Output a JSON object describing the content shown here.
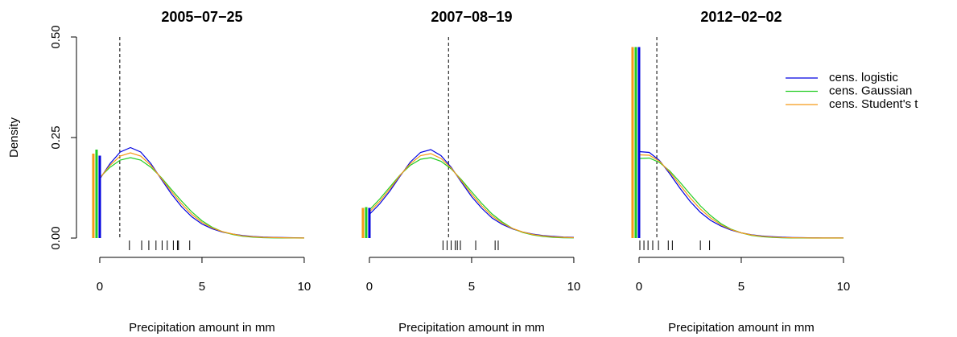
{
  "chart_data": [
    {
      "type": "line",
      "title": "2005−07−25",
      "xlabel": "Precipitation amount in mm",
      "ylabel": "Density",
      "x": [
        0,
        0.5,
        1,
        1.5,
        2,
        2.5,
        3,
        3.5,
        4,
        4.5,
        5,
        5.5,
        6,
        6.5,
        7,
        7.5,
        8,
        8.5,
        9,
        9.5,
        10
      ],
      "series": [
        {
          "color": "#0000e0",
          "mass": 0.205,
          "values": [
            0.147,
            0.185,
            0.214,
            0.225,
            0.214,
            0.185,
            0.147,
            0.11,
            0.078,
            0.053,
            0.035,
            0.023,
            0.015,
            0.01,
            0.0065,
            0.004,
            0.0026,
            0.0017,
            0.0011,
            0.0007,
            0.0005
          ]
        },
        {
          "color": "#22cc22",
          "mass": 0.22,
          "values": [
            0.151,
            0.176,
            0.194,
            0.2,
            0.194,
            0.176,
            0.151,
            0.121,
            0.092,
            0.065,
            0.043,
            0.027,
            0.016,
            0.009,
            0.0045,
            0.0022,
            0.001,
            0.0004,
            0.0002,
            0.0001,
            0
          ]
        },
        {
          "color": "#f59a17",
          "mass": 0.21,
          "values": [
            0.149,
            0.181,
            0.204,
            0.212,
            0.204,
            0.181,
            0.149,
            0.116,
            0.085,
            0.059,
            0.039,
            0.025,
            0.016,
            0.01,
            0.0055,
            0.0031,
            0.0018,
            0.0011,
            0.0007,
            0.0004,
            0.0003
          ]
        }
      ],
      "observation": 0.98,
      "members": [
        1.45,
        2.05,
        2.4,
        2.75,
        3.05,
        3.3,
        3.6,
        3.8,
        3.85,
        4.4
      ],
      "xlim": [
        -0.4,
        10.4
      ],
      "ylim": [
        0,
        0.5
      ],
      "xticks": [
        0,
        5,
        10
      ],
      "yticks": [
        {
          "value": 0,
          "label": "0.00"
        },
        {
          "value": 0.25,
          "label": "0.25"
        },
        {
          "value": 0.5,
          "label": "0.50"
        }
      ]
    },
    {
      "type": "line",
      "title": "2007−08−19",
      "xlabel": "Precipitation amount in mm",
      "x": [
        0,
        0.5,
        1,
        1.5,
        2,
        2.5,
        3,
        3.5,
        4,
        4.5,
        5,
        5.5,
        6,
        6.5,
        7,
        7.5,
        8,
        8.5,
        9,
        9.5,
        10
      ],
      "series": [
        {
          "color": "#0000e0",
          "mass": 0.075,
          "values": [
            0.059,
            0.085,
            0.117,
            0.154,
            0.189,
            0.213,
            0.22,
            0.205,
            0.176,
            0.139,
            0.103,
            0.074,
            0.05,
            0.034,
            0.023,
            0.015,
            0.0097,
            0.0063,
            0.0041,
            0.0026,
            0.0017
          ]
        },
        {
          "color": "#22cc22",
          "mass": 0.077,
          "values": [
            0.07,
            0.097,
            0.127,
            0.157,
            0.181,
            0.196,
            0.2,
            0.191,
            0.172,
            0.145,
            0.115,
            0.086,
            0.06,
            0.04,
            0.024,
            0.014,
            0.0078,
            0.004,
            0.0019,
            0.0009,
            0.0004
          ]
        },
        {
          "color": "#f59a17",
          "mass": 0.075,
          "values": [
            0.065,
            0.091,
            0.122,
            0.156,
            0.185,
            0.205,
            0.21,
            0.198,
            0.174,
            0.142,
            0.109,
            0.08,
            0.055,
            0.037,
            0.024,
            0.015,
            0.0088,
            0.0052,
            0.003,
            0.0018,
            0.001
          ]
        }
      ],
      "observation": 3.87,
      "members": [
        3.6,
        3.8,
        4.0,
        4.2,
        4.3,
        4.45,
        5.2,
        6.15,
        6.3
      ],
      "xlim": [
        -0.4,
        10.4
      ],
      "ylim": [
        0,
        0.5
      ],
      "xticks": [
        0,
        5,
        10
      ]
    },
    {
      "type": "line",
      "title": "2012−02−02",
      "xlabel": "Precipitation amount in mm",
      "x": [
        0,
        0.5,
        1,
        1.5,
        2,
        2.5,
        3,
        3.5,
        4,
        4.5,
        5,
        5.5,
        6,
        6.5,
        7,
        7.5,
        8,
        8.5,
        9,
        9.5,
        10
      ],
      "series": [
        {
          "name": "cens. logistic",
          "color": "#0000e0",
          "mass": 0.475,
          "values": [
            0.215,
            0.213,
            0.193,
            0.16,
            0.124,
            0.091,
            0.064,
            0.044,
            0.03,
            0.02,
            0.013,
            0.0085,
            0.0055,
            0.0036,
            0.0023,
            0.0015,
            0.001,
            0.0006,
            0.0004,
            0.0003,
            0.0002
          ]
        },
        {
          "name": "cens. Gaussian",
          "color": "#22cc22",
          "mass": 0.475,
          "values": [
            0.198,
            0.199,
            0.188,
            0.167,
            0.139,
            0.109,
            0.08,
            0.056,
            0.036,
            0.022,
            0.013,
            0.0068,
            0.0035,
            0.0016,
            0.0007,
            0.0003,
            0.0001,
            0,
            0,
            0,
            0
          ]
        },
        {
          "name": "cens. Student's t",
          "color": "#f59a17",
          "mass": 0.475,
          "values": [
            0.207,
            0.206,
            0.191,
            0.164,
            0.132,
            0.1,
            0.072,
            0.05,
            0.033,
            0.021,
            0.013,
            0.0077,
            0.0045,
            0.0026,
            0.0015,
            0.0009,
            0.0006,
            0.0003,
            0.0002,
            0.0002,
            0.0001
          ]
        }
      ],
      "observation": 0.87,
      "members": [
        0.04,
        0.24,
        0.44,
        0.67,
        0.95,
        1.43,
        1.63,
        3.0,
        3.45
      ],
      "xlim": [
        -0.4,
        10.4
      ],
      "ylim": [
        0,
        0.5
      ],
      "xticks": [
        0,
        5,
        10
      ],
      "legend": "topright"
    }
  ]
}
